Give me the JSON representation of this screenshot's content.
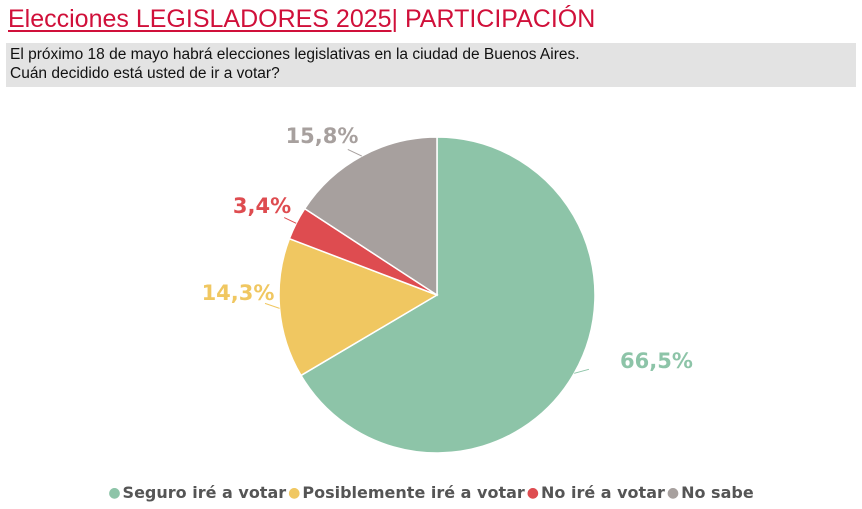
{
  "header": {
    "title_part1": "Elecciones LEGISLADORES 2025",
    "title_part2": "| PARTICIPACIÓN",
    "subtitle_line1": "El próximo 18 de mayo habrá elecciones legislativas en la ciudad de Buenos Aires.",
    "subtitle_line2": "Cuán decidido está usted de ir a votar?"
  },
  "chart_data": {
    "type": "pie",
    "start_angle": "top, clockwise",
    "slices": [
      {
        "label": "Seguro iré a votar",
        "value": 66.5,
        "display": "66,5%",
        "color": "#8dc4a8"
      },
      {
        "label": "Posiblemente iré a votar",
        "value": 14.3,
        "display": "14,3%",
        "color": "#f0c761"
      },
      {
        "label": "No iré a votar",
        "value": 3.4,
        "display": "3,4%",
        "color": "#de4c50"
      },
      {
        "label": "No sabe",
        "value": 15.8,
        "display": "15,8%",
        "color": "#a7a09e"
      }
    ],
    "legend_position": "bottom"
  }
}
